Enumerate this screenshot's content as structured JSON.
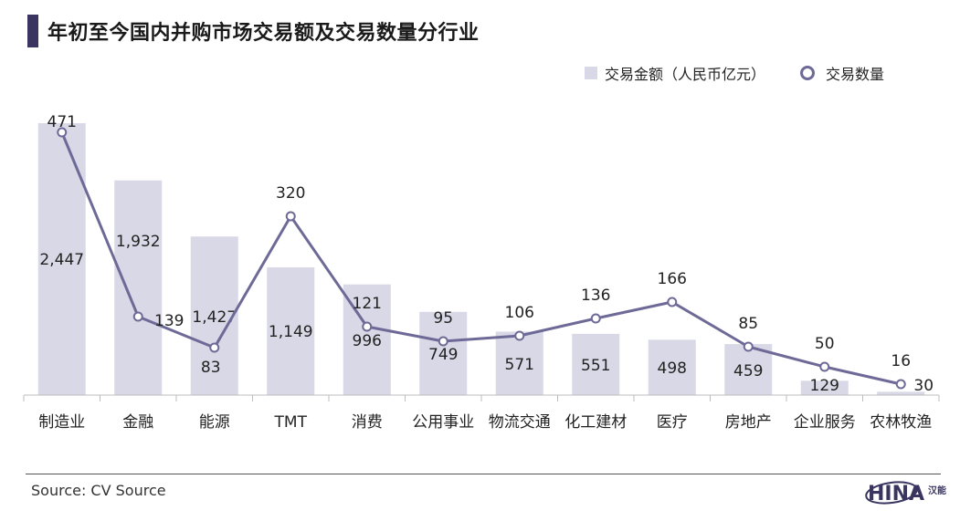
{
  "header": {
    "title": "年初至今国内并购市场交易额及交易数量分行业"
  },
  "legend": {
    "bar_label": "交易金额（人民币亿元）",
    "line_label": "交易数量"
  },
  "footer": {
    "source": "Source: CV Source",
    "logo": "HINA",
    "logo_mark": "汉能"
  },
  "colors": {
    "bar": "#d9d8e6",
    "line": "#6e6a97",
    "title_accent": "#3a3560"
  },
  "chart_data": {
    "type": "bar",
    "categories": [
      "制造业",
      "金融",
      "能源",
      "TMT",
      "消费",
      "公用事业",
      "物流交通",
      "化工建材",
      "医疗",
      "房地产",
      "企业服务",
      "农林牧渔"
    ],
    "series": [
      {
        "name": "交易金额（人民币亿元）",
        "type": "bar",
        "values": [
          2447,
          1932,
          1427,
          1149,
          996,
          749,
          571,
          551,
          498,
          459,
          129,
          30
        ]
      },
      {
        "name": "交易数量",
        "type": "line",
        "values": [
          471,
          139,
          83,
          320,
          121,
          95,
          106,
          136,
          166,
          85,
          50,
          16
        ]
      }
    ],
    "bar_labels": [
      "2,447",
      "1,932",
      "1,427",
      "1,149",
      "996",
      "749",
      "571",
      "551",
      "498",
      "459",
      "129",
      "30"
    ],
    "line_labels": [
      "471",
      "139",
      "83",
      "320",
      "121",
      "95",
      "106",
      "136",
      "166",
      "85",
      "50",
      "16"
    ]
  }
}
